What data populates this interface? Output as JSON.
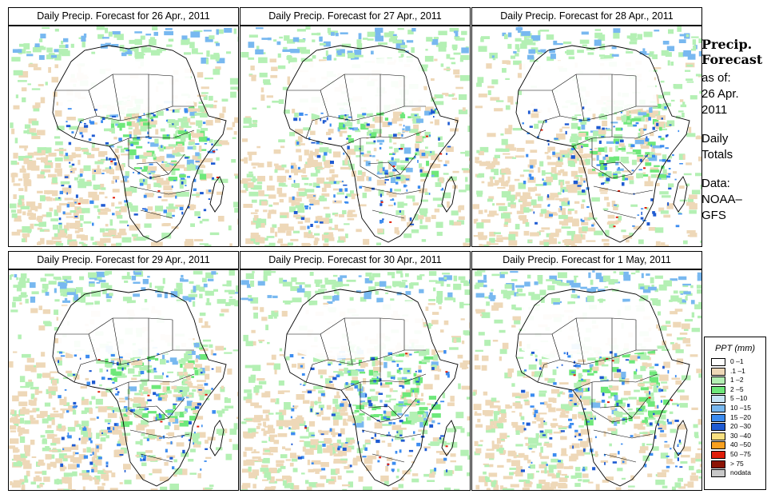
{
  "panels": [
    {
      "title": "Daily Precip. Forecast for  26 Apr., 2011"
    },
    {
      "title": "Daily Precip. Forecast for  27 Apr., 2011"
    },
    {
      "title": "Daily Precip. Forecast for  28 Apr., 2011"
    },
    {
      "title": "Daily Precip. Forecast for  29 Apr., 2011"
    },
    {
      "title": "Daily Precip. Forecast for  30 Apr., 2011"
    },
    {
      "title": "Daily Precip. Forecast for  1 May, 2011"
    }
  ],
  "sidebar": {
    "heading_line1": "Precip.",
    "heading_line2": "Forecast",
    "asof_line1": "as of:",
    "asof_line2": "26 Apr.",
    "asof_line3": "2011",
    "totals_line1": "Daily",
    "totals_line2": "Totals",
    "data_line1": "Data:",
    "data_line2": "NOAA–",
    "data_line3": "GFS"
  },
  "legend": {
    "title": "PPT (mm)",
    "items": [
      {
        "label": "0 –1",
        "color": "#ffffff"
      },
      {
        "label": ".1 –1",
        "color": "#eed8b8"
      },
      {
        "label": "1 –2",
        "color": "#b4f0b4"
      },
      {
        "label": "2 –5",
        "color": "#6ee87a"
      },
      {
        "label": "5 –10",
        "color": "#c8e6f8"
      },
      {
        "label": "10 –15",
        "color": "#78b8f0"
      },
      {
        "label": "15 –20",
        "color": "#3c8cf0"
      },
      {
        "label": "20 –30",
        "color": "#1e5ad2"
      },
      {
        "label": "30 –40",
        "color": "#f8e080"
      },
      {
        "label": "40 –50",
        "color": "#f8a020"
      },
      {
        "label": "50 –75",
        "color": "#e01e0a"
      },
      {
        "label": "> 75",
        "color": "#8c1405"
      },
      {
        "label": "nodata",
        "color": "#c8c8c8"
      }
    ]
  }
}
